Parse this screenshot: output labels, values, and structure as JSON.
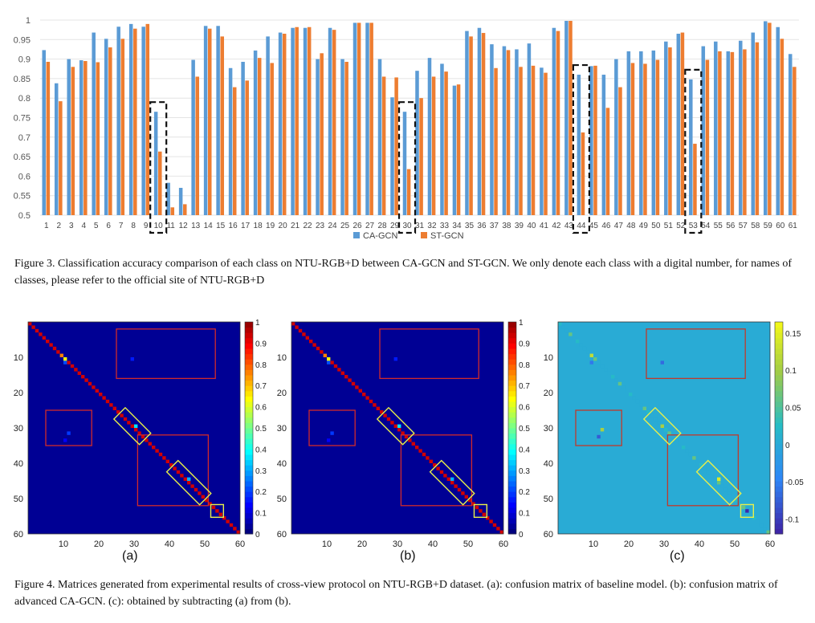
{
  "chart_data": [
    {
      "type": "bar",
      "title": "",
      "xlabel": "",
      "ylabel": "",
      "ylim": [
        0.5,
        1
      ],
      "yticks": [
        "0.5",
        "0.55",
        "0.6",
        "0.65",
        "0.7",
        "0.75",
        "0.8",
        "0.85",
        "0.9",
        "0.95",
        "1"
      ],
      "categories": [
        "1",
        "2",
        "3",
        "4",
        "5",
        "6",
        "7",
        "8",
        "9",
        "10",
        "11",
        "12",
        "13",
        "14",
        "15",
        "16",
        "17",
        "18",
        "19",
        "20",
        "21",
        "22",
        "23",
        "24",
        "25",
        "26",
        "27",
        "28",
        "29",
        "30",
        "31",
        "32",
        "33",
        "34",
        "35",
        "36",
        "37",
        "38",
        "39",
        "40",
        "41",
        "42",
        "43",
        "44",
        "45",
        "46",
        "47",
        "48",
        "49",
        "50",
        "51",
        "52",
        "53",
        "54",
        "55",
        "56",
        "57",
        "58",
        "59",
        "60",
        "61"
      ],
      "series": [
        {
          "name": "CA-GCN",
          "color": "#5b9bd5",
          "values": [
            0.923,
            0.838,
            0.9,
            0.897,
            0.968,
            0.952,
            0.983,
            0.99,
            0.983,
            0.765,
            0.583,
            0.57,
            0.898,
            0.985,
            0.985,
            0.877,
            0.893,
            0.922,
            0.958,
            0.968,
            0.98,
            0.98,
            0.9,
            0.98,
            0.9,
            0.993,
            0.993,
            0.9,
            0.802,
            0.765,
            0.87,
            0.903,
            0.888,
            0.832,
            0.972,
            0.98,
            0.938,
            0.933,
            0.925,
            0.94,
            0.878,
            0.98,
            0.998,
            0.86,
            0.882,
            0.86,
            0.9,
            0.92,
            0.92,
            0.922,
            0.945,
            0.965,
            0.848,
            0.933,
            0.945,
            0.92,
            0.947,
            0.968,
            0.997,
            0.982,
            0.913
          ]
        },
        {
          "name": "ST-GCN",
          "color": "#ed7d31",
          "values": [
            0.893,
            0.792,
            0.88,
            0.895,
            0.892,
            0.93,
            0.952,
            0.978,
            0.99,
            0.663,
            0.52,
            0.528,
            0.855,
            0.978,
            0.958,
            0.828,
            0.845,
            0.903,
            0.89,
            0.965,
            0.982,
            0.982,
            0.915,
            0.975,
            0.893,
            0.993,
            0.993,
            0.855,
            0.853,
            0.618,
            0.8,
            0.855,
            0.868,
            0.835,
            0.958,
            0.967,
            0.877,
            0.923,
            0.88,
            0.883,
            0.865,
            0.972,
            0.998,
            0.712,
            0.883,
            0.775,
            0.828,
            0.89,
            0.888,
            0.898,
            0.93,
            0.968,
            0.683,
            0.898,
            0.92,
            0.918,
            0.925,
            0.943,
            0.993,
            0.952,
            0.88
          ]
        }
      ],
      "highlighted_categories": [
        "10",
        "30",
        "44",
        "53"
      ],
      "legend": [
        "CA-GCN",
        "ST-GCN"
      ],
      "legend_position": "bottom"
    },
    {
      "type": "heatmap",
      "panel": "(a)",
      "size": 60,
      "xticks": [
        "10",
        "20",
        "30",
        "40",
        "50",
        "60"
      ],
      "yticks": [
        "10",
        "20",
        "30",
        "40",
        "50",
        "60"
      ],
      "colorbar_ticks": [
        "0",
        "0.1",
        "0.2",
        "0.3",
        "0.4",
        "0.5",
        "0.6",
        "0.7",
        "0.8",
        "0.9",
        "1"
      ],
      "colorbar_range": [
        0,
        1
      ]
    },
    {
      "type": "heatmap",
      "panel": "(b)",
      "size": 60,
      "xticks": [
        "10",
        "20",
        "30",
        "40",
        "50",
        "60"
      ],
      "yticks": [
        "10",
        "20",
        "30",
        "40",
        "50",
        "60"
      ],
      "colorbar_ticks": [
        "0",
        "0.1",
        "0.2",
        "0.3",
        "0.4",
        "0.5",
        "0.6",
        "0.7",
        "0.8",
        "0.9",
        "1"
      ],
      "colorbar_range": [
        0,
        1
      ]
    },
    {
      "type": "heatmap",
      "panel": "(c)",
      "size": 60,
      "xticks": [
        "10",
        "20",
        "30",
        "40",
        "50",
        "60"
      ],
      "yticks": [
        "10",
        "20",
        "30",
        "40",
        "50",
        "60"
      ],
      "colorbar_ticks": [
        "-0.1",
        "-0.05",
        "0",
        "0.05",
        "0.1",
        "0.15"
      ],
      "colorbar_range": [
        -0.12,
        0.165
      ]
    }
  ],
  "captions": {
    "fig3": "Figure 3. Classification accuracy comparison of each class on NTU-RGB+D between CA-GCN and ST-GCN. We only denote each class with a digital number, for names of classes, please refer to the official site of NTU-RGB+D",
    "fig4": "Figure 4. Matrices generated from experimental results of cross-view protocol on NTU-RGB+D dataset. (a): confusion matrix of baseline model. (b): confusion matrix of advanced CA-GCN. (c): obtained by subtracting (a) from (b)."
  },
  "panel_labels": {
    "a": "(a)",
    "b": "(b)",
    "c": "(c)"
  }
}
